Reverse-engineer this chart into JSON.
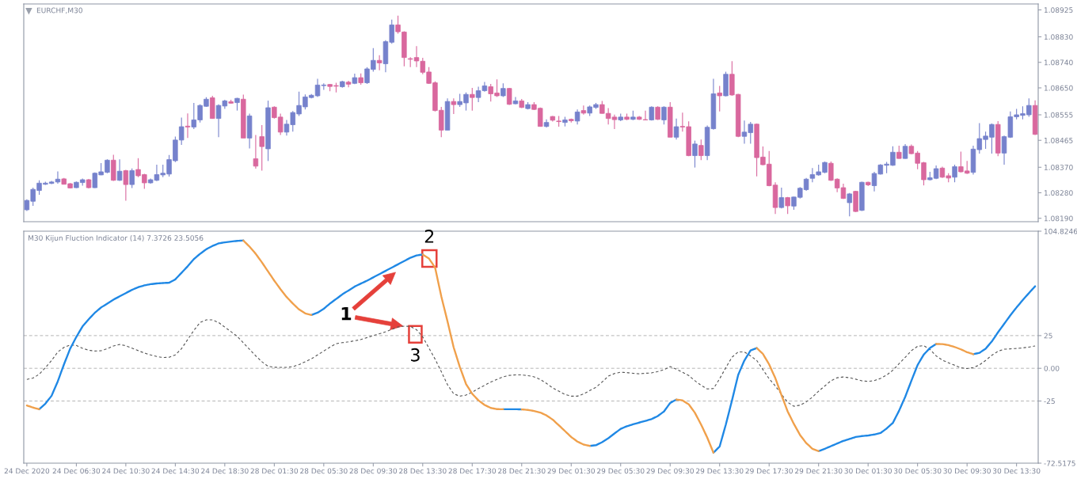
{
  "chart_data": [
    {
      "type": "candlestick",
      "title": "EURCHF,M30",
      "categories": [
        null,
        null,
        null,
        null,
        null,
        null,
        null,
        null,
        null,
        null,
        null,
        null,
        null,
        null,
        null,
        null,
        null,
        null,
        null,
        null,
        null,
        null,
        null,
        null,
        null,
        null,
        null,
        null,
        null,
        null,
        null,
        null,
        null,
        null,
        null,
        null,
        null,
        null,
        null,
        null,
        null,
        null,
        null,
        null,
        null,
        null,
        null,
        null,
        null,
        null,
        null,
        null,
        null,
        null,
        null,
        null,
        null,
        null,
        null,
        null,
        null,
        null,
        null,
        null,
        null,
        null,
        null,
        null,
        null,
        null,
        null,
        null,
        null,
        null,
        null,
        null,
        null,
        null,
        null,
        null,
        null,
        null,
        null,
        null,
        null,
        null,
        null,
        null,
        null,
        null,
        null,
        null,
        null,
        null,
        null,
        null,
        null,
        null,
        null,
        null,
        null,
        null,
        null,
        null,
        null,
        null,
        null,
        null,
        null,
        null,
        null,
        null,
        null,
        null,
        null,
        null,
        null,
        null,
        null,
        null,
        null,
        null,
        null,
        null,
        null,
        null,
        null,
        null,
        null,
        null,
        null,
        null,
        null,
        null,
        null,
        null,
        null,
        null,
        null,
        null,
        null,
        null,
        null,
        null,
        null,
        null,
        null,
        null,
        null,
        null,
        null,
        null,
        null,
        null,
        null,
        null,
        null,
        null,
        null,
        null,
        null,
        null,
        null,
        null
      ],
      "ohlc": [
        [
          1.0822,
          1.08257,
          1.08216,
          1.08253
        ],
        [
          1.0825,
          1.08298,
          1.08234,
          1.08292
        ],
        [
          1.08288,
          1.08324,
          1.08273,
          1.08314
        ],
        [
          1.0831,
          1.08319,
          1.08308,
          1.08314
        ],
        [
          1.08313,
          1.08322,
          1.08311,
          1.08318
        ],
        [
          1.08318,
          1.08355,
          1.08312,
          1.08328
        ],
        [
          1.08329,
          1.08332,
          1.08309,
          1.0831
        ],
        [
          1.08312,
          1.08314,
          1.08295,
          1.08297
        ],
        [
          1.08298,
          1.0832,
          1.08297,
          1.08317
        ],
        [
          1.08316,
          1.0833,
          1.08305,
          1.08326
        ],
        [
          1.08326,
          1.08329,
          1.08295,
          1.08298
        ],
        [
          1.08298,
          1.08352,
          1.08297,
          1.08349
        ],
        [
          1.08343,
          1.08385,
          1.08342,
          1.08354
        ],
        [
          1.08352,
          1.08398,
          1.08349,
          1.08395
        ],
        [
          1.08395,
          1.08414,
          1.08322,
          1.08324
        ],
        [
          1.08324,
          1.08398,
          1.08322,
          1.08356
        ],
        [
          1.08358,
          1.08361,
          1.08252,
          1.08309
        ],
        [
          1.08309,
          1.08366,
          1.08297,
          1.08358
        ],
        [
          1.08362,
          1.08402,
          1.08335,
          1.0834
        ],
        [
          1.08344,
          1.08347,
          1.08294,
          1.08315
        ],
        [
          1.08315,
          1.0833,
          1.08312,
          1.08326
        ],
        [
          1.08324,
          1.08379,
          1.08321,
          1.08344
        ],
        [
          1.08343,
          1.08379,
          1.08335,
          1.08349
        ],
        [
          1.08346,
          1.08413,
          1.08337,
          1.08397
        ],
        [
          1.08393,
          1.08478,
          1.08388,
          1.08466
        ],
        [
          1.08466,
          1.08545,
          1.08449,
          1.08513
        ],
        [
          1.08515,
          1.0856,
          1.08473,
          1.08512
        ],
        [
          1.08512,
          1.08597,
          1.08505,
          1.08537
        ],
        [
          1.08537,
          1.08592,
          1.08528,
          1.08588
        ],
        [
          1.08585,
          1.08617,
          1.08583,
          1.0861
        ],
        [
          1.08615,
          1.08622,
          1.08542,
          1.08542
        ],
        [
          1.08542,
          1.08592,
          1.08476,
          1.08588
        ],
        [
          1.08586,
          1.08608,
          1.08576,
          1.08604
        ],
        [
          1.08601,
          1.08608,
          1.08594,
          1.08596
        ],
        [
          1.08598,
          1.08615,
          1.0857,
          1.08613
        ],
        [
          1.0861,
          1.08626,
          1.08473,
          1.08473
        ],
        [
          1.08473,
          1.08559,
          1.08436,
          1.08551
        ],
        [
          1.084,
          1.08484,
          1.08365,
          1.08374
        ],
        [
          1.08478,
          1.08519,
          1.08358,
          1.08443
        ],
        [
          1.08435,
          1.08605,
          1.08392,
          1.0858
        ],
        [
          1.08582,
          1.08585,
          1.08542,
          1.08545
        ],
        [
          1.08547,
          1.08559,
          1.08484,
          1.08494
        ],
        [
          1.08494,
          1.08537,
          1.08482,
          1.08522
        ],
        [
          1.0852,
          1.08568,
          1.08496,
          1.08563
        ],
        [
          1.08558,
          1.08637,
          1.08551,
          1.08588
        ],
        [
          1.08583,
          1.08627,
          1.08574,
          1.08618
        ],
        [
          1.08616,
          1.08628,
          1.08613,
          1.08624
        ],
        [
          1.08622,
          1.08682,
          1.08618,
          1.0866
        ],
        [
          1.08658,
          1.08666,
          1.08643,
          1.0866
        ],
        [
          1.08662,
          1.08664,
          1.08638,
          1.08655
        ],
        [
          1.08658,
          1.08668,
          1.08634,
          1.08656
        ],
        [
          1.08654,
          1.08675,
          1.08651,
          1.08672
        ],
        [
          1.0867,
          1.08675,
          1.08652,
          1.08663
        ],
        [
          1.08666,
          1.087,
          1.08663,
          1.08686
        ],
        [
          1.08686,
          1.08701,
          1.08661,
          1.08668
        ],
        [
          1.08668,
          1.08723,
          1.08664,
          1.08717
        ],
        [
          1.08715,
          1.0879,
          1.08707,
          1.08747
        ],
        [
          1.08747,
          1.08765,
          1.08712,
          1.08738
        ],
        [
          1.08735,
          1.08818,
          1.08705,
          1.08813
        ],
        [
          1.08811,
          1.08891,
          1.08806,
          1.08872
        ],
        [
          1.08872,
          1.08905,
          1.08841,
          1.08848
        ],
        [
          1.08847,
          1.0885,
          1.08726,
          1.08757
        ],
        [
          1.08753,
          1.08758,
          1.08723,
          1.08751
        ],
        [
          1.08757,
          1.08797,
          1.08723,
          1.08745
        ],
        [
          1.08744,
          1.08756,
          1.08698,
          1.08705
        ],
        [
          1.08706,
          1.08723,
          1.08664,
          1.08666
        ],
        [
          1.08668,
          1.08673,
          1.08567,
          1.0857
        ],
        [
          1.08571,
          1.08583,
          1.08476,
          1.08501
        ],
        [
          1.08501,
          1.08613,
          1.08501,
          1.08602
        ],
        [
          1.08602,
          1.08613,
          1.08558,
          1.08591
        ],
        [
          1.08591,
          1.08629,
          1.08583,
          1.08602
        ],
        [
          1.08597,
          1.08634,
          1.0857,
          1.08627
        ],
        [
          1.08627,
          1.0865,
          1.0857,
          1.08616
        ],
        [
          1.08616,
          1.08654,
          1.086,
          1.0864
        ],
        [
          1.0864,
          1.08671,
          1.08637,
          1.08657
        ],
        [
          1.08654,
          1.08664,
          1.08602,
          1.08629
        ],
        [
          1.08632,
          1.0868,
          1.08618,
          1.08622
        ],
        [
          1.08622,
          1.08666,
          1.08618,
          1.08648
        ],
        [
          1.08648,
          1.0865,
          1.0859,
          1.08592
        ],
        [
          1.08594,
          1.08618,
          1.08592,
          1.08604
        ],
        [
          1.08604,
          1.08611,
          1.08579,
          1.08581
        ],
        [
          1.08577,
          1.086,
          1.08574,
          1.08591
        ],
        [
          1.08591,
          1.086,
          1.08572,
          1.08574
        ],
        [
          1.08578,
          1.08581,
          1.08513,
          1.08514
        ],
        [
          1.08514,
          1.08539,
          1.0851,
          1.08528
        ],
        [
          1.08549,
          1.08551,
          1.08531,
          1.08536
        ],
        [
          1.08533,
          1.08551,
          1.08513,
          1.08531
        ],
        [
          1.08528,
          1.08548,
          1.08514,
          1.08537
        ],
        [
          1.08539,
          1.08542,
          1.08528,
          1.08534
        ],
        [
          1.08533,
          1.08574,
          1.08521,
          1.08565
        ],
        [
          1.0857,
          1.08588,
          1.08556,
          1.08561
        ],
        [
          1.08561,
          1.08588,
          1.08551,
          1.08583
        ],
        [
          1.08581,
          1.08597,
          1.08576,
          1.08591
        ],
        [
          1.08591,
          1.08604,
          1.08559,
          1.0856
        ],
        [
          1.0856,
          1.08579,
          1.08521,
          1.08542
        ],
        [
          1.08547,
          1.08556,
          1.08505,
          1.08538
        ],
        [
          1.08537,
          1.08559,
          1.08533,
          1.08547
        ],
        [
          1.08547,
          1.08559,
          1.08536,
          1.08539
        ],
        [
          1.08539,
          1.0857,
          1.08536,
          1.08547
        ],
        [
          1.08547,
          1.08551,
          1.08537,
          1.08539
        ],
        [
          1.08538,
          1.0857,
          1.08536,
          1.08537
        ],
        [
          1.08537,
          1.08585,
          1.08535,
          1.08582
        ],
        [
          1.08582,
          1.08585,
          1.08537,
          1.08539
        ],
        [
          1.08537,
          1.08585,
          1.08521,
          1.08582
        ],
        [
          1.08582,
          1.086,
          1.08476,
          1.08476
        ],
        [
          1.08476,
          1.08542,
          1.08468,
          1.08513
        ],
        [
          1.08514,
          1.08563,
          1.08496,
          1.08512
        ],
        [
          1.08513,
          1.08532,
          1.08409,
          1.08411
        ],
        [
          1.08411,
          1.08464,
          1.08369,
          1.08452
        ],
        [
          1.08447,
          1.08468,
          1.08395,
          1.08411
        ],
        [
          1.08411,
          1.08517,
          1.08395,
          1.08511
        ],
        [
          1.08506,
          1.08682,
          1.08503,
          1.08629
        ],
        [
          1.08632,
          1.08657,
          1.08567,
          1.08622
        ],
        [
          1.08622,
          1.08707,
          1.0862,
          1.08698
        ],
        [
          1.08698,
          1.08744,
          1.08622,
          1.08625
        ],
        [
          1.08627,
          1.08629,
          1.08476,
          1.08479
        ],
        [
          1.08479,
          1.08535,
          1.08453,
          1.08494
        ],
        [
          1.08492,
          1.0853,
          1.08453,
          1.08522
        ],
        [
          1.08522,
          1.08524,
          1.08338,
          1.08404
        ],
        [
          1.08406,
          1.08443,
          1.08377,
          1.08379
        ],
        [
          1.08381,
          1.08427,
          1.08303,
          1.08305
        ],
        [
          1.08307,
          1.08317,
          1.08205,
          1.08228
        ],
        [
          1.08228,
          1.08298,
          1.08225,
          1.08263
        ],
        [
          1.08263,
          1.08265,
          1.08205,
          1.08234
        ],
        [
          1.08233,
          1.08266,
          1.0822,
          1.08265
        ],
        [
          1.08264,
          1.083,
          1.0826,
          1.08296
        ],
        [
          1.08291,
          1.08332,
          1.08287,
          1.08328
        ],
        [
          1.08331,
          1.08367,
          1.08317,
          1.08344
        ],
        [
          1.08343,
          1.08379,
          1.0834,
          1.08354
        ],
        [
          1.08352,
          1.0839,
          1.08349,
          1.08387
        ],
        [
          1.08384,
          1.0839,
          1.08322,
          1.08324
        ],
        [
          1.08328,
          1.08331,
          1.08282,
          1.08297
        ],
        [
          1.08298,
          1.08312,
          1.08258,
          1.0826
        ],
        [
          1.08245,
          1.08279,
          1.08197,
          1.08276
        ],
        [
          1.08285,
          1.08287,
          1.08212,
          1.08214
        ],
        [
          1.08218,
          1.08319,
          1.08216,
          1.08317
        ],
        [
          1.08317,
          1.08319,
          1.08304,
          1.08308
        ],
        [
          1.08305,
          1.08354,
          1.08285,
          1.08348
        ],
        [
          1.08346,
          1.08381,
          1.08344,
          1.08378
        ],
        [
          1.08377,
          1.08389,
          1.08349,
          1.08381
        ],
        [
          1.08377,
          1.08444,
          1.08375,
          1.08423
        ],
        [
          1.08423,
          1.08446,
          1.084,
          1.08401
        ],
        [
          1.08401,
          1.08452,
          1.084,
          1.08444
        ],
        [
          1.08444,
          1.0845,
          1.08416,
          1.08418
        ],
        [
          1.0842,
          1.08427,
          1.08363,
          1.08384
        ],
        [
          1.08386,
          1.08389,
          1.08306,
          1.08326
        ],
        [
          1.08326,
          1.08354,
          1.08323,
          1.08333
        ],
        [
          1.08331,
          1.08376,
          1.08328,
          1.08365
        ],
        [
          1.08367,
          1.08372,
          1.08332,
          1.08335
        ],
        [
          1.0834,
          1.08349,
          1.08317,
          1.08332
        ],
        [
          1.08335,
          1.08379,
          1.08317,
          1.08372
        ],
        [
          1.08372,
          1.08425,
          1.08352,
          1.08354
        ],
        [
          1.08357,
          1.08392,
          1.08346,
          1.08349
        ],
        [
          1.08352,
          1.08446,
          1.08344,
          1.08434
        ],
        [
          1.08432,
          1.08526,
          1.08418,
          1.08471
        ],
        [
          1.08468,
          1.08496,
          1.08435,
          1.0848
        ],
        [
          1.08476,
          1.08524,
          1.08418,
          1.08521
        ],
        [
          1.08521,
          1.08533,
          1.08409,
          1.0842
        ],
        [
          1.0842,
          1.08482,
          1.08379,
          1.08478
        ],
        [
          1.08476,
          1.08567,
          1.08473,
          1.08548
        ],
        [
          1.08548,
          1.08576,
          1.08539,
          1.08555
        ],
        [
          1.08553,
          1.08585,
          1.08539,
          1.08559
        ],
        [
          1.08555,
          1.08613,
          1.08548,
          1.08588
        ],
        [
          1.08588,
          1.08606,
          1.08484,
          1.08486
        ]
      ],
      "colors": [
        "#7682cc",
        "#7682cc",
        "#7682cc",
        "#7682cc",
        "#7682cc",
        "#7682cc",
        "#d9689e",
        "#d9689e",
        "#7682cc",
        "#7682cc",
        "#d9689e",
        "#7682cc",
        "#7682cc",
        "#7682cc",
        "#d9689e",
        "#7682cc",
        "#d9689e",
        "#7682cc",
        "#d9689e",
        "#d9689e",
        "#7682cc",
        "#7682cc",
        "#7682cc",
        "#7682cc",
        "#7682cc",
        "#7682cc",
        "#d9689e",
        "#7682cc",
        "#7682cc",
        "#7682cc",
        "#d9689e",
        "#7682cc",
        "#7682cc",
        "#d9689e",
        "#7682cc",
        "#d9689e",
        "#7682cc",
        "#d9689e",
        "#d9689e",
        "#7682cc",
        "#d9689e",
        "#d9689e",
        "#7682cc",
        "#7682cc",
        "#7682cc",
        "#7682cc",
        "#7682cc",
        "#7682cc",
        "#7682cc",
        "#d9689e",
        "#d9689e",
        "#7682cc",
        "#d9689e",
        "#7682cc",
        "#d9689e",
        "#7682cc",
        "#7682cc",
        "#d9689e",
        "#7682cc",
        "#7682cc",
        "#d9689e",
        "#d9689e",
        "#d9689e",
        "#d9689e",
        "#d9689e",
        "#d9689e",
        "#d9689e",
        "#d9689e",
        "#7682cc",
        "#d9689e",
        "#7682cc",
        "#7682cc",
        "#d9689e",
        "#7682cc",
        "#7682cc",
        "#d9689e",
        "#d9689e",
        "#7682cc",
        "#d9689e",
        "#7682cc",
        "#d9689e",
        "#7682cc",
        "#d9689e",
        "#d9689e",
        "#7682cc",
        "#d9689e",
        "#d9689e",
        "#7682cc",
        "#d9689e",
        "#7682cc",
        "#d9689e",
        "#7682cc",
        "#7682cc",
        "#d9689e",
        "#d9689e",
        "#d9689e",
        "#7682cc",
        "#d9689e",
        "#7682cc",
        "#d9689e",
        "#d9689e",
        "#7682cc",
        "#d9689e",
        "#7682cc",
        "#d9689e",
        "#7682cc",
        "#d9689e",
        "#d9689e",
        "#7682cc",
        "#d9689e",
        "#7682cc",
        "#7682cc",
        "#d9689e",
        "#7682cc",
        "#d9689e",
        "#d9689e",
        "#7682cc",
        "#7682cc",
        "#d9689e",
        "#d9689e",
        "#d9689e",
        "#d9689e",
        "#7682cc",
        "#d9689e",
        "#7682cc",
        "#7682cc",
        "#7682cc",
        "#7682cc",
        "#7682cc",
        "#7682cc",
        "#d9689e",
        "#d9689e",
        "#d9689e",
        "#7682cc",
        "#d9689e",
        "#7682cc",
        "#d9689e",
        "#7682cc",
        "#7682cc",
        "#7682cc",
        "#7682cc",
        "#d9689e",
        "#7682cc",
        "#d9689e",
        "#d9689e",
        "#d9689e",
        "#7682cc",
        "#7682cc",
        "#d9689e",
        "#d9689e",
        "#7682cc",
        "#d9689e",
        "#d9689e",
        "#7682cc",
        "#7682cc",
        "#7682cc",
        "#7682cc",
        "#d9689e",
        "#7682cc",
        "#7682cc",
        "#7682cc",
        "#7682cc",
        "#7682cc",
        "#d9689e"
      ],
      "ylim": [
        1.08178,
        1.08946
      ],
      "yticks": [
        1.08925,
        {
          "value": 1.0883,
          "label": "1.08830"
        },
        {
          "value": 1.0874,
          "label": "1.08740"
        },
        {
          "value": 1.0865,
          "label": "1.08650"
        },
        1.08555,
        1.08465,
        {
          "value": 1.0837,
          "label": "1.08370"
        },
        {
          "value": 1.0828,
          "label": "1.08280"
        },
        {
          "value": 1.0819,
          "label": "1.08190"
        }
      ]
    },
    {
      "type": "line",
      "title": "M30 Kijun Fluction Indicator (14) 7.3726 23.5056",
      "categories": [
        "24 Dec 2020",
        null,
        null,
        null,
        null,
        null,
        null,
        null,
        "24 Dec 06:30",
        null,
        null,
        null,
        null,
        null,
        null,
        null,
        "24 Dec 10:30",
        null,
        null,
        null,
        null,
        null,
        null,
        null,
        "24 Dec 14:30",
        null,
        null,
        null,
        null,
        null,
        null,
        null,
        "24 Dec 18:30",
        null,
        null,
        null,
        null,
        null,
        null,
        null,
        "28 Dec 01:30",
        null,
        null,
        null,
        null,
        null,
        null,
        null,
        "28 Dec 05:30",
        null,
        null,
        null,
        null,
        null,
        null,
        null,
        "28 Dec 09:30",
        null,
        null,
        null,
        null,
        null,
        null,
        null,
        "28 Dec 13:30",
        null,
        null,
        null,
        null,
        null,
        null,
        null,
        "28 Dec 17:30",
        null,
        null,
        null,
        null,
        null,
        null,
        null,
        "28 Dec 21:30",
        null,
        null,
        null,
        null,
        null,
        null,
        null,
        "29 Dec 01:30",
        null,
        null,
        null,
        null,
        null,
        null,
        null,
        "29 Dec 05:30",
        null,
        null,
        null,
        null,
        null,
        null,
        null,
        "29 Dec 09:30",
        null,
        null,
        null,
        null,
        null,
        null,
        null,
        "29 Dec 13:30",
        null,
        null,
        null,
        null,
        null,
        null,
        null,
        "29 Dec 17:30",
        null,
        null,
        null,
        null,
        null,
        null,
        null,
        "29 Dec 21:30",
        null,
        null,
        null,
        null,
        null,
        null,
        null,
        "30 Dec 01:30",
        null,
        null,
        null,
        null,
        null,
        null,
        null,
        "30 Dec 05:30",
        null,
        null,
        null,
        null,
        null,
        null,
        null,
        "30 Dec 09:30",
        null,
        null,
        null,
        null,
        null,
        null,
        null,
        "30 Dec 13:30",
        null,
        null,
        null
      ],
      "series": [
        {
          "color": "#f0a04b",
          "values": [
            -28.4,
            -30.0,
            -31.3,
            null,
            null,
            null,
            null,
            null,
            null,
            null,
            null,
            null,
            null,
            null,
            null,
            null,
            null,
            null,
            null,
            null,
            null,
            null,
            null,
            null,
            null,
            null,
            null,
            null,
            null,
            null,
            null,
            null,
            null,
            null,
            null,
            97.7,
            93.0,
            87.5,
            81.0,
            74.0,
            67.0,
            60.5,
            54.5,
            49.5,
            45.0,
            42.0,
            40.8,
            null,
            null,
            null,
            null,
            null,
            null,
            null,
            null,
            null,
            null,
            null,
            null,
            null,
            null,
            null,
            null,
            null,
            87.0,
            84.0,
            77.0,
            55.0,
            36.0,
            16.0,
            1.0,
            -12.0,
            -19.5,
            -24.5,
            -28.0,
            -30.3,
            -31.2,
            -31.3,
            null,
            null,
            -31.4,
            -31.8,
            -32.6,
            -33.8,
            -36.0,
            -39.2,
            -43.5,
            -48.0,
            -52.5,
            -56.0,
            -58.3,
            -59.3,
            null,
            null,
            null,
            null,
            null,
            null,
            null,
            null,
            null,
            null,
            null,
            null,
            null,
            -23.9,
            -24.5,
            -27.5,
            -34.0,
            -43.0,
            -53.0,
            -64.5,
            null,
            null,
            null,
            null,
            null,
            null,
            15.5,
            11.0,
            3.0,
            -7.5,
            -20.5,
            -33.0,
            -42.5,
            -51.0,
            -57.2,
            -61.5,
            -63.3,
            null,
            null,
            null,
            null,
            null,
            null,
            null,
            null,
            null,
            null,
            null,
            null,
            null,
            null,
            null,
            null,
            null,
            null,
            18.6,
            18.5,
            17.7,
            16.3,
            14.5,
            12.3,
            10.8,
            null,
            null,
            null,
            null,
            null,
            null,
            null,
            null,
            null,
            null
          ]
        },
        {
          "color": "#1f88e5",
          "values": [
            null,
            null,
            -31.3,
            -27.0,
            -21.0,
            -10.0,
            3.0,
            15.0,
            24.0,
            32.0,
            37.5,
            42.5,
            46.5,
            49.5,
            52.5,
            55.0,
            57.5,
            60.0,
            62.0,
            63.4,
            64.3,
            64.9,
            65.2,
            65.4,
            68.0,
            73.0,
            78.0,
            83.5,
            87.5,
            91.0,
            93.5,
            95.5,
            96.3,
            96.9,
            97.4,
            97.7,
            null,
            null,
            null,
            null,
            null,
            null,
            null,
            null,
            null,
            null,
            40.8,
            42.5,
            45.5,
            49.5,
            53.0,
            56.5,
            59.5,
            62.5,
            64.8,
            67.0,
            69.5,
            72.0,
            74.5,
            77.0,
            79.5,
            82.0,
            84.5,
            86.3,
            87.0,
            null,
            null,
            null,
            null,
            null,
            null,
            null,
            null,
            null,
            null,
            null,
            null,
            -31.3,
            -31.3,
            -31.3,
            -31.4,
            null,
            null,
            null,
            null,
            null,
            null,
            null,
            null,
            null,
            null,
            -59.3,
            -58.8,
            -56.5,
            -53.5,
            -49.8,
            -46.3,
            -44.3,
            -42.8,
            -41.5,
            -40.2,
            -38.8,
            -36.5,
            -33.0,
            -26.5,
            -23.9,
            null,
            null,
            null,
            null,
            null,
            -64.5,
            -59.8,
            -43.0,
            -24.5,
            -5.0,
            6.0,
            13.6,
            15.5,
            null,
            null,
            null,
            null,
            null,
            null,
            null,
            null,
            null,
            -63.3,
            -61.5,
            -59.5,
            -57.5,
            -55.5,
            -54.0,
            -52.5,
            -51.8,
            -51.4,
            -50.6,
            -49.5,
            -46.0,
            -41.8,
            -32.5,
            -21.8,
            -9.5,
            2.5,
            10.5,
            15.5,
            18.6,
            null,
            null,
            null,
            null,
            null,
            10.8,
            11.8,
            15.0,
            20.5,
            27.5,
            34.0,
            40.5,
            46.5,
            52.2,
            57.5,
            62.7
          ]
        },
        {
          "color": "#555555",
          "line_style": "dashed",
          "values": [
            -8.5,
            -7.5,
            -4.5,
            0.5,
            6,
            12.5,
            16,
            17.8,
            17.5,
            15.3,
            13.8,
            13.2,
            13.4,
            15,
            17.1,
            18.2,
            17.3,
            15.4,
            13.5,
            11.7,
            10.2,
            9,
            8.2,
            8.5,
            10.3,
            15,
            22,
            29,
            35,
            37,
            37,
            35,
            31.5,
            28,
            24.5,
            19.5,
            14.5,
            9.5,
            5,
            1.5,
            0.8,
            0.7,
            0.7,
            1.3,
            2.8,
            5,
            7.2,
            10.2,
            13.2,
            16.2,
            18.8,
            19.6,
            20.2,
            21,
            22,
            23.5,
            25,
            26.4,
            27.9,
            29.8,
            31.6,
            32.2,
            32,
            29.5,
            24,
            15.5,
            7,
            -2.5,
            -12.5,
            -19.5,
            -21.3,
            -20.5,
            -18.2,
            -15.5,
            -13,
            -10.5,
            -8.5,
            -6.5,
            -5.4,
            -5,
            -5,
            -5.6,
            -6.5,
            -8.5,
            -11.5,
            -15,
            -17.5,
            -20,
            -21.3,
            -21.3,
            -19.6,
            -17,
            -14.5,
            -10.5,
            -6,
            -4,
            -3,
            -3.3,
            -3.8,
            -4.2,
            -3.8,
            -3.5,
            -2.5,
            -1,
            1.3,
            -0.6,
            -3,
            -5.5,
            -9.5,
            -13,
            -15.8,
            -15.5,
            -8,
            0.5,
            8.5,
            12.5,
            12.5,
            9.5,
            6,
            -1,
            -8,
            -13.5,
            -20,
            -26,
            -29,
            -28.2,
            -25.7,
            -22,
            -17.5,
            -13.5,
            -9.5,
            -7.2,
            -6.6,
            -7.2,
            -8.3,
            -9.6,
            -10,
            -9.4,
            -7.7,
            -5.2,
            -1.5,
            3.5,
            8.4,
            13.5,
            16.8,
            17.3,
            14.5,
            9.5,
            6.3,
            4.2,
            2.3,
            0.4,
            -0.2,
            0.5,
            2.6,
            6,
            10,
            13,
            14.6,
            14.9,
            15.2,
            15.6,
            16.2,
            17.1
          ]
        }
      ],
      "ylim": [
        -72.5175,
        104.8246
      ],
      "yticks": [
        104.8246,
        25,
        {
          "value": 0,
          "label": "0.00"
        },
        -25,
        -72.5175
      ],
      "ref_lines": [
        {
          "axis": "y",
          "value": 25,
          "color": "#b4b4b4",
          "line_style": "dashed"
        },
        {
          "axis": "y",
          "value": 0,
          "color": "#b4b4b4",
          "line_style": "dashed"
        },
        {
          "axis": "y",
          "value": -25,
          "color": "#b4b4b4",
          "line_style": "dashed"
        }
      ],
      "annotations": [
        "1",
        {
          "text": "2",
          "y": 84
        },
        {
          "text": "3",
          "y": 26
        }
      ]
    }
  ]
}
